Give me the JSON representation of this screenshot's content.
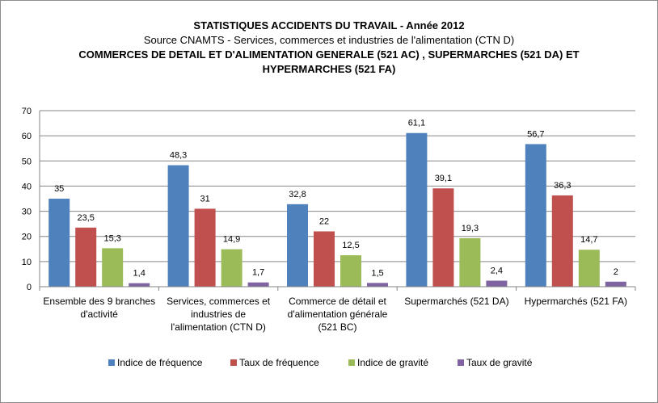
{
  "chart_data": {
    "type": "bar",
    "title": "STATISTIQUES ACCIDENTS DU TRAVAIL - Année 2012",
    "subtitle": "Source CNAMTS - Services, commerces et industries de l'alimentation (CTN D)",
    "title_line3": "COMMERCES DE DETAIL ET D'ALIMENTATION GENERALE (521 AC) , SUPERMARCHES (521 DA) ET",
    "title_line4": "HYPERMARCHES (521 FA)",
    "categories": [
      [
        "Ensemble des 9 branches",
        "d'activité"
      ],
      [
        "Services, commerces et",
        "industries de",
        "l'alimentation (CTN D)"
      ],
      [
        "Commerce de détail et",
        "d'alimentation générale",
        "(521 BC)"
      ],
      [
        "Supermarchés (521 DA)"
      ],
      [
        "Hypermarchés (521 FA)"
      ]
    ],
    "series": [
      {
        "name": "Indice de fréquence",
        "color": "#4f81bd",
        "values": [
          35,
          48.3,
          32.8,
          61.1,
          56.7
        ],
        "labels": [
          "35",
          "48,3",
          "32,8",
          "61,1",
          "56,7"
        ]
      },
      {
        "name": "Taux de fréquence",
        "color": "#c0504d",
        "values": [
          23.5,
          31,
          22,
          39.1,
          36.3
        ],
        "labels": [
          "23,5",
          "31",
          "22",
          "39,1",
          "36,3"
        ]
      },
      {
        "name": "Indice de gravité",
        "color": "#9bbb59",
        "values": [
          15.3,
          14.9,
          12.5,
          19.3,
          14.7
        ],
        "labels": [
          "15,3",
          "14,9",
          "12,5",
          "19,3",
          "14,7"
        ]
      },
      {
        "name": "Taux de gravité",
        "color": "#8064a2",
        "values": [
          1.4,
          1.7,
          1.5,
          2.4,
          2
        ],
        "labels": [
          "1,4",
          "1,7",
          "1,5",
          "2,4",
          "2"
        ]
      }
    ],
    "ylim": [
      0,
      70
    ],
    "yticks": [
      0,
      10,
      20,
      30,
      40,
      50,
      60,
      70
    ],
    "grid": true,
    "legend_position": "bottom"
  }
}
